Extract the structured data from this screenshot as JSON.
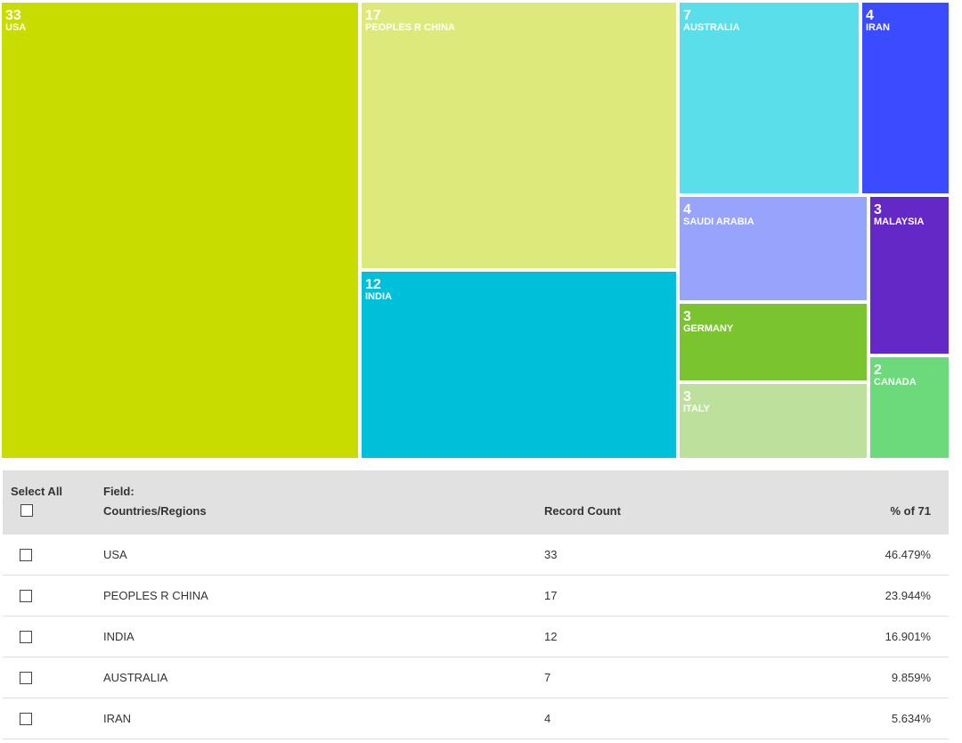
{
  "chart_data": {
    "type": "treemap",
    "items": [
      {
        "label": "USA",
        "value": 33,
        "color": "#c8dc00"
      },
      {
        "label": "PEOPLES R CHINA",
        "value": 17,
        "color": "#dde97a"
      },
      {
        "label": "INDIA",
        "value": 12,
        "color": "#00bfd8"
      },
      {
        "label": "AUSTRALIA",
        "value": 7,
        "color": "#5adfea"
      },
      {
        "label": "IRAN",
        "value": 4,
        "color": "#3b4bff"
      },
      {
        "label": "SAUDI ARABIA",
        "value": 4,
        "color": "#97a4fc"
      },
      {
        "label": "MALAYSIA",
        "value": 3,
        "color": "#6328c6"
      },
      {
        "label": "GERMANY",
        "value": 3,
        "color": "#7ac52f"
      },
      {
        "label": "ITALY",
        "value": 3,
        "color": "#bde19d"
      },
      {
        "label": "CANADA",
        "value": 2,
        "color": "#6cd97a"
      }
    ]
  },
  "table": {
    "select_all_label": "Select All",
    "field_label": "Field:",
    "field_value": "Countries/Regions",
    "record_count_header": "Record Count",
    "percent_header": "% of 71",
    "rows": [
      {
        "name": "USA",
        "count": "33",
        "percent": "46.479%"
      },
      {
        "name": "PEOPLES R CHINA",
        "count": "17",
        "percent": "23.944%"
      },
      {
        "name": "INDIA",
        "count": "12",
        "percent": "16.901%"
      },
      {
        "name": "AUSTRALIA",
        "count": "7",
        "percent": "9.859%"
      },
      {
        "name": "IRAN",
        "count": "4",
        "percent": "5.634%"
      }
    ]
  }
}
